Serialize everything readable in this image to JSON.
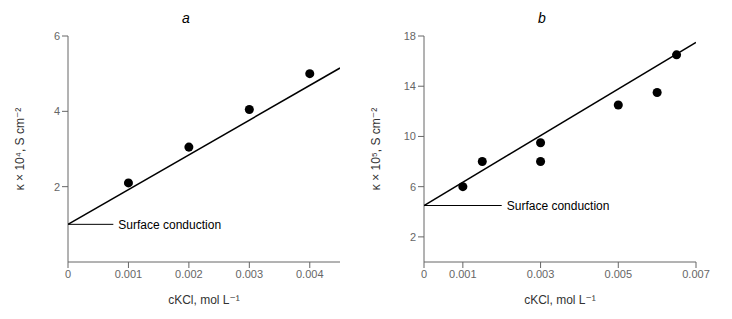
{
  "chart_data": [
    {
      "type": "scatter",
      "title": "a",
      "x_label": "cKCl, mol L⁻¹",
      "y_label": "κ × 10⁴, S cm⁻²",
      "series": [
        {
          "type": "scatter",
          "color": "black",
          "marker": "circle",
          "x": [
            0.001,
            0.002,
            0.003,
            0.004
          ],
          "values": [
            2.1,
            3.05,
            4.05,
            5.0
          ]
        },
        {
          "type": "line",
          "color": "black",
          "line_style": "solid",
          "x": [
            0.0,
            0.0045
          ],
          "values": [
            1.0,
            5.15
          ]
        }
      ],
      "annotations": [
        {
          "text": "Surface conduction",
          "x": 0.00075,
          "y": 1.0,
          "arrow_x": 0.0,
          "arrow_y": 1.0
        }
      ],
      "xlim": [
        0,
        0.0045
      ],
      "ylim": [
        0,
        6
      ],
      "xticks": [
        0,
        0.001,
        0.002,
        0.003,
        0.004
      ],
      "yticks": [
        2,
        4,
        6
      ]
    },
    {
      "type": "scatter",
      "title": "b",
      "x_label": "cKCl, mol L⁻¹",
      "y_label": "κ × 10⁵, S cm⁻²",
      "series": [
        {
          "type": "scatter",
          "color": "black",
          "marker": "circle",
          "x": [
            0.001,
            0.0015,
            0.003,
            0.003,
            0.005,
            0.006,
            0.0065
          ],
          "values": [
            6.0,
            8.0,
            9.5,
            8.0,
            12.5,
            13.5,
            16.5
          ]
        },
        {
          "type": "line",
          "color": "black",
          "line_style": "solid",
          "x": [
            0.0,
            0.007
          ],
          "values": [
            4.5,
            17.5
          ]
        }
      ],
      "annotations": [
        {
          "text": "Surface conduction",
          "x": 0.002,
          "y": 4.5,
          "arrow_x": 0.0,
          "arrow_y": 4.5
        }
      ],
      "xlim": [
        0,
        0.007
      ],
      "ylim": [
        0,
        18
      ],
      "xticks": [
        0,
        0.001,
        0.003,
        0.005,
        0.007
      ],
      "yticks": [
        2,
        6,
        10,
        14,
        18
      ]
    }
  ]
}
